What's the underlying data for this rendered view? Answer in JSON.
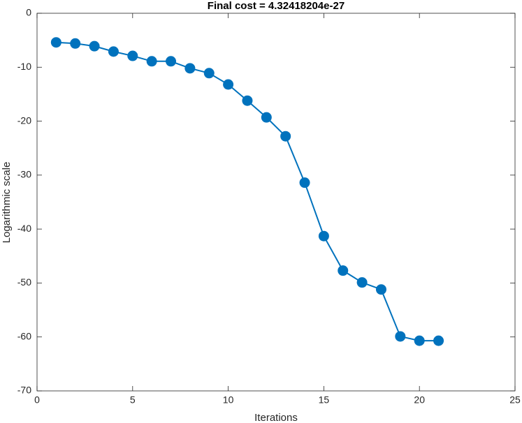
{
  "chart_data": {
    "type": "line",
    "title": "Final cost = 4.32418204e-27",
    "xlabel": "Iterations",
    "ylabel": "Logarithmic scale",
    "x": [
      1,
      2,
      3,
      4,
      5,
      6,
      7,
      8,
      9,
      10,
      11,
      12,
      13,
      14,
      15,
      16,
      17,
      18,
      19,
      20,
      21
    ],
    "values": [
      -5.4,
      -5.6,
      -6.1,
      -7.1,
      -7.9,
      -8.9,
      -8.9,
      -10.2,
      -11.1,
      -13.2,
      -16.2,
      -19.3,
      -22.8,
      -31.4,
      -41.3,
      -47.7,
      -49.9,
      -51.2,
      -59.9,
      -60.7,
      -60.7
    ],
    "color": "#0072bd",
    "xlim": [
      0,
      25
    ],
    "xticks": [
      0,
      5,
      10,
      15,
      20,
      25
    ],
    "ylim": [
      -70,
      0
    ],
    "yticks": [
      -70,
      -60,
      -50,
      -40,
      -30,
      -20,
      -10,
      0
    ],
    "grid": false
  }
}
